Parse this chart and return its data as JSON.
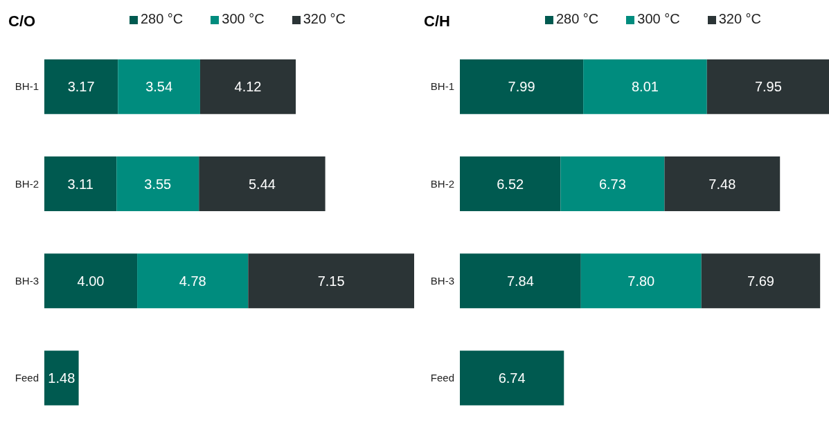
{
  "chart_data": [
    {
      "type": "bar",
      "title": "C/O",
      "orientation": "horizontal",
      "stacked": true,
      "legend": "top",
      "categories": [
        "BH-1",
        "BH-2",
        "BH-3",
        "Feed"
      ],
      "series": [
        {
          "name": "280 °C",
          "color": "#005a50",
          "values": [
            3.17,
            3.11,
            4.0,
            1.48
          ],
          "value_labels": [
            "3.17",
            "3.11",
            "4.00",
            "1.48"
          ]
        },
        {
          "name": "300 °C",
          "color": "#008c7e",
          "values": [
            3.54,
            3.55,
            4.78,
            null
          ],
          "value_labels": [
            "3.54",
            "3.55",
            "4.78",
            null
          ]
        },
        {
          "name": "320 °C",
          "color": "#2b3436",
          "values": [
            4.12,
            5.44,
            7.15,
            null
          ],
          "value_labels": [
            "4.12",
            "5.44",
            "7.15",
            null
          ]
        }
      ]
    },
    {
      "type": "bar",
      "title": "C/H",
      "orientation": "horizontal",
      "stacked": true,
      "legend": "top",
      "categories": [
        "BH-1",
        "BH-2",
        "BH-3",
        "Feed"
      ],
      "series": [
        {
          "name": "280 °C",
          "color": "#005a50",
          "values": [
            7.99,
            6.52,
            7.84,
            6.74
          ],
          "value_labels": [
            "7.99",
            "6.52",
            "7.84",
            "6.74"
          ]
        },
        {
          "name": "300 °C",
          "color": "#008c7e",
          "values": [
            8.01,
            6.73,
            7.8,
            null
          ],
          "value_labels": [
            "8.01",
            "6.73",
            "7.80",
            null
          ]
        },
        {
          "name": "320 °C",
          "color": "#2b3436",
          "values": [
            7.95,
            7.48,
            7.69,
            null
          ],
          "value_labels": [
            "7.95",
            "7.48",
            "7.69",
            null
          ]
        }
      ]
    }
  ]
}
